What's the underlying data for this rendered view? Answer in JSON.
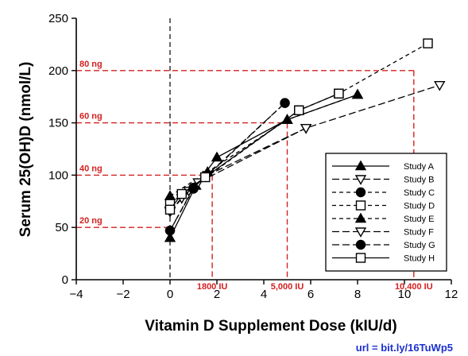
{
  "chart_data": {
    "type": "line",
    "xlabel": "Vitamin D Supplement Dose (kIU/d)",
    "ylabel": "Serum 25(OH)D (nmol/L)",
    "xlim": [
      -4,
      12
    ],
    "ylim": [
      0,
      250
    ],
    "x_ticks": [
      "−4",
      "−2",
      "0",
      "2",
      "4",
      "6",
      "8",
      "10",
      "12"
    ],
    "y_ticks": [
      "0",
      "50",
      "100",
      "150",
      "200",
      "250"
    ],
    "x_tick_values": [
      -4,
      -2,
      0,
      2,
      4,
      6,
      8,
      10,
      12
    ],
    "y_tick_values": [
      0,
      50,
      100,
      150,
      200,
      250
    ],
    "series": [
      {
        "name": "Study A",
        "marker": "triangle-up-filled",
        "dash": "solid",
        "points": [
          [
            0,
            40
          ],
          [
            1.1,
            90
          ],
          [
            2,
            117
          ],
          [
            5,
            153
          ],
          [
            8,
            177
          ]
        ]
      },
      {
        "name": "Study B",
        "marker": "triangle-down-open",
        "dash": "long-dash",
        "points": [
          [
            0,
            65
          ],
          [
            0.8,
            85
          ],
          [
            1.6,
            100
          ],
          [
            5.8,
            145
          ],
          [
            11.5,
            186
          ]
        ]
      },
      {
        "name": "Study C",
        "marker": "circle-filled",
        "dash": "dash",
        "points": [
          [
            0,
            47
          ],
          [
            1,
            87
          ],
          [
            4.9,
            169
          ]
        ]
      },
      {
        "name": "Study D",
        "marker": "square-open",
        "dash": "dash",
        "points": [
          [
            0,
            73
          ],
          [
            5.5,
            162
          ],
          [
            7.2,
            178
          ],
          [
            11,
            226
          ]
        ]
      },
      {
        "name": "Study E",
        "marker": "triangle-up-filled",
        "dash": "dash",
        "points": [
          [
            0,
            80
          ],
          [
            1.6,
            103
          ],
          [
            5,
            153
          ],
          [
            8,
            177
          ]
        ]
      },
      {
        "name": "Study F",
        "marker": "triangle-down-open",
        "dash": "long-dash",
        "points": [
          [
            0,
            66
          ],
          [
            0.5,
            78
          ],
          [
            1.2,
            93
          ],
          [
            5.8,
            145
          ]
        ]
      },
      {
        "name": "Study G",
        "marker": "circle-filled",
        "dash": "long-dash",
        "points": [
          [
            0,
            47
          ],
          [
            1,
            88
          ],
          [
            4.9,
            169
          ]
        ]
      },
      {
        "name": "Study H",
        "marker": "square-open",
        "dash": "solid",
        "points": [
          [
            0,
            67
          ],
          [
            0.5,
            82
          ],
          [
            1.5,
            98
          ],
          [
            5.5,
            162
          ],
          [
            7.2,
            178
          ]
        ]
      }
    ],
    "reference_lines": {
      "horizontal": [
        {
          "y": 50,
          "label": "20 ng",
          "x_end": 0
        },
        {
          "y": 100,
          "label": "40 ng",
          "x_end": 1.8
        },
        {
          "y": 150,
          "label": "60 ng",
          "x_end": 5
        },
        {
          "y": 200,
          "label": "80 ng",
          "x_end": 10.4
        }
      ],
      "vertical": [
        {
          "x": 1.8,
          "label": "1800 IU",
          "y_end": 100
        },
        {
          "x": 5,
          "label": "5,000 IU",
          "y_end": 150
        },
        {
          "x": 10.4,
          "label": "10,400 IU",
          "y_end": 200
        }
      ],
      "zero_line": {
        "x": 0
      }
    },
    "grid": false,
    "legend_position": "bottom-right",
    "colors": {
      "reference": "#d42020",
      "data": "#000000",
      "url": "#1a2fd0"
    }
  },
  "url_text": "url = bit.ly/16TuWp5"
}
